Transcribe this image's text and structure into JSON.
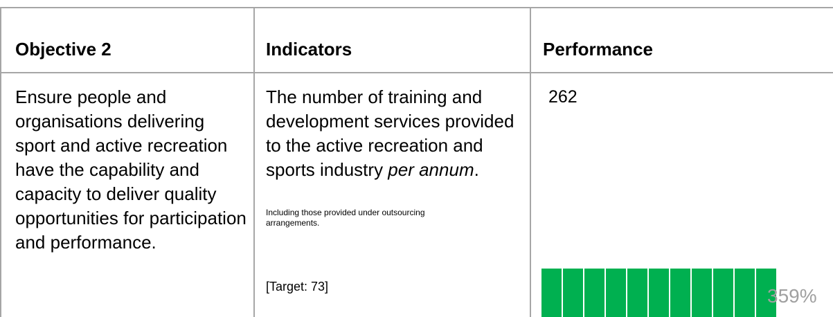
{
  "table": {
    "header": [
      "Objective 2",
      "Indicators",
      "Performance"
    ],
    "objective": "Ensure people and organisations delivering sport and active recreation have the capability and capacity to deliver quality opportunities for participation and performance.",
    "indicator": {
      "text": "The number of training and development services provided to the active recreation and sports industry ",
      "emphasis": "per annum",
      "end": "."
    },
    "note": "Including those provided under outsourcing arrangements.",
    "target": "[Target: 73]",
    "performance": "262",
    "percent": "359%"
  }
}
